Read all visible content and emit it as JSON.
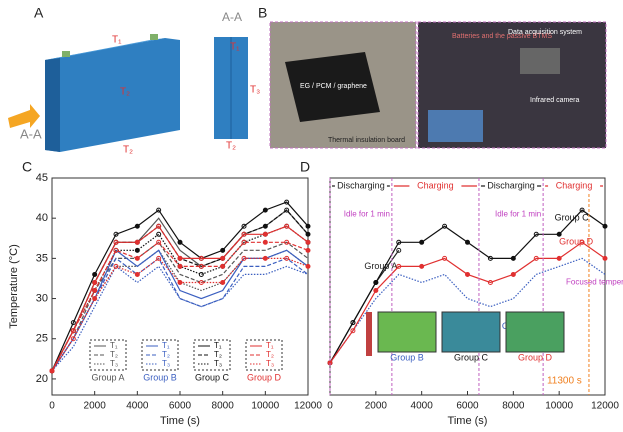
{
  "panels": {
    "a": {
      "label": "A",
      "section": "A-A",
      "section_right": "A-A",
      "t1": "T₁",
      "t2": "T₂",
      "t3": "T₃",
      "t1_side": "T₁",
      "t2_side": "T₂",
      "t2_bottom": "T₂"
    },
    "b": {
      "label": "B",
      "left_note": "EG / PCM / graphene",
      "board": "Thermal insulation board",
      "btms": "Batteries and the passive BTMS",
      "daq": "Data acquisition system",
      "camera": "Infrared camera"
    }
  },
  "chart_data": [
    {
      "type": "line",
      "label": "C",
      "ylabel": "Temperature (°C)",
      "xlabel": "Time (s)",
      "x": [
        0,
        1000,
        2000,
        3000,
        4000,
        5000,
        6000,
        7000,
        8000,
        9000,
        10000,
        11000,
        12000
      ],
      "xlim": [
        0,
        12000
      ],
      "xticks": [
        0,
        2000,
        4000,
        6000,
        8000,
        10000,
        12000
      ],
      "ylim": [
        18,
        45
      ],
      "yticks": [
        20,
        25,
        30,
        35,
        40,
        45
      ],
      "groups": [
        {
          "name": "Group A",
          "color": "#555555",
          "markers": false,
          "series": [
            {
              "name": "T₁",
              "values": [
                21,
                26,
                32,
                37,
                37,
                40,
                36,
                34,
                35,
                38,
                39,
                41,
                38
              ]
            },
            {
              "name": "T₂",
              "values": [
                21,
                25,
                31,
                35,
                35,
                37,
                33,
                32,
                33,
                36,
                36,
                37,
                35
              ]
            },
            {
              "name": "T₃",
              "values": [
                21,
                25,
                30,
                34,
                34,
                36,
                32,
                31,
                32,
                35,
                35,
                36,
                34
              ]
            }
          ]
        },
        {
          "name": "Group B",
          "color": "#3b5fc0",
          "markers": false,
          "series": [
            {
              "name": "T₁",
              "values": [
                21,
                25,
                30,
                36,
                34,
                36,
                31,
                30,
                31,
                35,
                35,
                36,
                34
              ]
            },
            {
              "name": "T₂",
              "values": [
                21,
                25,
                30,
                35,
                33,
                35,
                30,
                29,
                30,
                34,
                34,
                35,
                33
              ]
            },
            {
              "name": "T₃",
              "values": [
                21,
                24,
                29,
                34,
                32,
                34,
                30,
                29,
                30,
                33,
                33,
                34,
                33
              ]
            }
          ]
        },
        {
          "name": "Group C",
          "color": "#111111",
          "markers": true,
          "series": [
            {
              "name": "T₁",
              "values": [
                21,
                27,
                33,
                38,
                39,
                41,
                37,
                35,
                36,
                39,
                41,
                42,
                39
              ]
            },
            {
              "name": "T₂",
              "values": [
                21,
                26,
                32,
                37,
                37,
                39,
                35,
                34,
                35,
                38,
                39,
                41,
                38
              ]
            },
            {
              "name": "T₃",
              "values": [
                21,
                26,
                31,
                36,
                36,
                38,
                34,
                33,
                34,
                37,
                38,
                39,
                37
              ]
            }
          ]
        },
        {
          "name": "Group D",
          "color": "#e03030",
          "markers": true,
          "series": [
            {
              "name": "T₁",
              "values": [
                21,
                26,
                32,
                37,
                37,
                39,
                35,
                35,
                35,
                38,
                38,
                39,
                37
              ]
            },
            {
              "name": "T₂",
              "values": [
                21,
                26,
                31,
                36,
                35,
                37,
                34,
                34,
                34,
                37,
                37,
                37,
                36
              ]
            },
            {
              "name": "T₃",
              "values": [
                21,
                25,
                30,
                34,
                33,
                35,
                32,
                32,
                32,
                35,
                35,
                35,
                34
              ]
            }
          ]
        }
      ]
    },
    {
      "type": "line",
      "label": "D",
      "xlabel": "Time (s)",
      "x": [
        0,
        1000,
        2000,
        3000,
        4000,
        5000,
        6000,
        7000,
        8000,
        9000,
        10000,
        11000,
        12000
      ],
      "xlim": [
        0,
        12000
      ],
      "xticks": [
        0,
        2000,
        4000,
        6000,
        8000,
        10000,
        12000
      ],
      "ylim": [
        18,
        45
      ],
      "series": [
        {
          "name": "Group A",
          "color": "#222222",
          "values": [
            22,
            27,
            32,
            36,
            null,
            null,
            null,
            null,
            null,
            null,
            null,
            null,
            null
          ]
        },
        {
          "name": "Group B",
          "color": "#3b5fc0",
          "values": [
            22,
            26,
            30,
            33,
            32,
            33,
            30,
            29,
            30,
            33,
            34,
            35,
            33
          ]
        },
        {
          "name": "Group C",
          "color": "#111111",
          "values": [
            22,
            27,
            32,
            37,
            37,
            39,
            37,
            35,
            35,
            38,
            38,
            41,
            39
          ]
        },
        {
          "name": "Group D",
          "color": "#e03030",
          "values": [
            22,
            26,
            31,
            34,
            34,
            35,
            33,
            32,
            33,
            35,
            35,
            37,
            35
          ]
        }
      ],
      "phases": [
        {
          "label": "Discharging",
          "start": 0,
          "end": 2700,
          "color": "#222222"
        },
        {
          "label": "Charging",
          "start": 2700,
          "end": 6500,
          "color": "#e03030"
        },
        {
          "label": "Discharging",
          "start": 6500,
          "end": 9300,
          "color": "#222222"
        },
        {
          "label": "Charging",
          "start": 9300,
          "end": 12000,
          "color": "#e03030"
        }
      ],
      "annotations": [
        "Idle for 1 min",
        "Idle for 1 min",
        "Focused temperatures"
      ],
      "marker": {
        "value": 11300,
        "label": "11300 s",
        "color": "#f08020"
      },
      "image_labels": [
        "Group B",
        "Group C",
        "Group D"
      ]
    }
  ]
}
